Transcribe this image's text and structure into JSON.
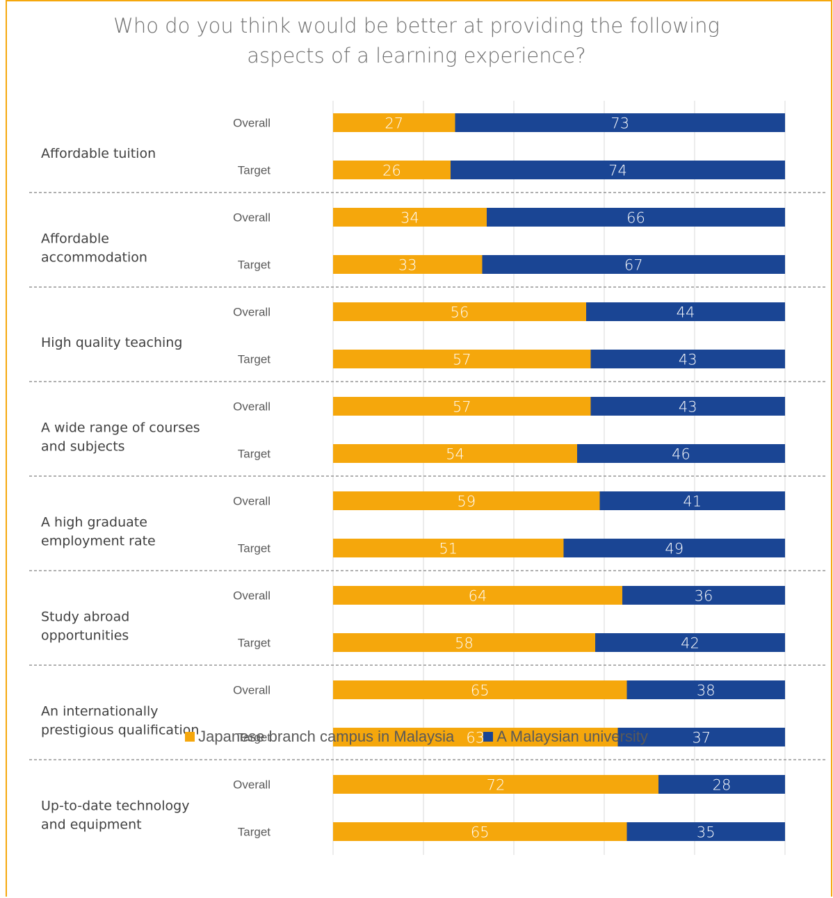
{
  "chart_data": {
    "type": "bar",
    "orientation": "horizontal",
    "stacked": true,
    "title": "Who do you think would be better at providing the following\naspects of a learning experience?",
    "groups": [
      "Affordable tuition",
      "Affordable accommodation",
      "High quality teaching",
      "A wide range of courses and subjects",
      "A high graduate employment rate",
      "Study abroad opportunities",
      "An internationally prestigious qualification",
      "Up-to-date technology and equipment"
    ],
    "group_label_lines": [
      [
        "Affordable tuition"
      ],
      [
        "Affordable",
        "accommodation"
      ],
      [
        "High quality teaching"
      ],
      [
        "A wide range of courses",
        "and subjects"
      ],
      [
        "A high graduate",
        "employment rate"
      ],
      [
        "Study abroad",
        "opportunities"
      ],
      [
        "An internationally",
        "prestigious qualification"
      ],
      [
        "Up-to-date technology",
        "and equipment"
      ]
    ],
    "subcategories": [
      "Overall",
      "Target"
    ],
    "series": [
      {
        "name": "Japanese branch campus in Malaysia",
        "color": "#f5a70c",
        "values": [
          27,
          26,
          34,
          33,
          56,
          57,
          57,
          54,
          59,
          51,
          64,
          58,
          65,
          63,
          72,
          65
        ]
      },
      {
        "name": "A Malaysian university",
        "color": "#1a4594",
        "values": [
          73,
          74,
          66,
          67,
          44,
          43,
          43,
          46,
          41,
          49,
          36,
          42,
          38,
          37,
          28,
          35
        ]
      }
    ],
    "xlim": [
      0,
      100
    ],
    "grid": true,
    "legend_position": "bottom"
  }
}
